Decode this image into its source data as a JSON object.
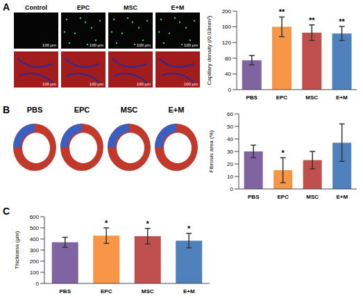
{
  "panel_labels": [
    "A",
    "B",
    "C"
  ],
  "micrographs": {
    "labels": [
      "Control",
      "EPC",
      "MSC",
      "E+M"
    ],
    "scale_bar": "100 μm"
  },
  "heart_sections": {
    "labels": [
      "PBS",
      "EPC",
      "MSC",
      "E+M"
    ]
  },
  "chart_data": [
    {
      "type": "bar",
      "categories": [
        "PBS",
        "EPC",
        "MSC",
        "E+M"
      ],
      "values": [
        75,
        160,
        145,
        143
      ],
      "errors": [
        12,
        25,
        20,
        18
      ],
      "annotations": [
        null,
        "**",
        "**",
        "**"
      ],
      "colors": [
        "#8064a2",
        "#f79646",
        "#c0504d",
        "#4f81bd"
      ],
      "y_label": "Capillary density (/0.03mm²)",
      "ylim": [
        0,
        200
      ],
      "yticks": [
        0,
        40,
        80,
        120,
        160,
        200
      ]
    },
    {
      "type": "bar",
      "categories": [
        "PBS",
        "EPC",
        "MSC",
        "E+M"
      ],
      "values": [
        30,
        15,
        23,
        37
      ],
      "errors": [
        5,
        10,
        7,
        15
      ],
      "annotations": [
        null,
        "*",
        null,
        null
      ],
      "colors": [
        "#8064a2",
        "#f79646",
        "#c0504d",
        "#4f81bd"
      ],
      "y_label": "Fibrosis area (%)",
      "ylim": [
        0,
        60
      ],
      "yticks": [
        0,
        10,
        20,
        30,
        40,
        50,
        60
      ]
    },
    {
      "type": "bar",
      "categories": [
        "PBS",
        "EPC",
        "MSC",
        "E+M"
      ],
      "values": [
        370,
        430,
        425,
        385
      ],
      "errors": [
        45,
        70,
        70,
        65
      ],
      "annotations": [
        null,
        "*",
        "*",
        "*"
      ],
      "colors": [
        "#8064a2",
        "#f79646",
        "#c0504d",
        "#4f81bd"
      ],
      "y_label": "Thickness (μm)",
      "ylim": [
        0,
        600
      ],
      "yticks": [
        0,
        100,
        200,
        300,
        400,
        500,
        600
      ]
    }
  ]
}
